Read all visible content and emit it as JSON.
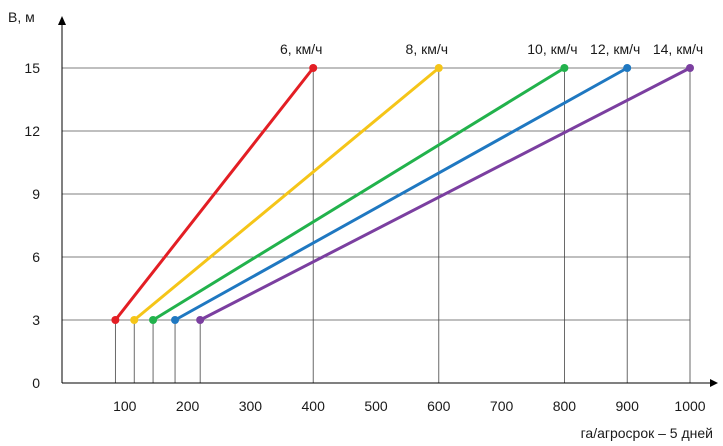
{
  "chart_data": {
    "type": "line",
    "ylabel": "B, м",
    "xlabel": "га/агросрок – 5 дней",
    "xlim": [
      0,
      1000
    ],
    "ylim": [
      0,
      15
    ],
    "xticks": [
      100,
      200,
      300,
      400,
      500,
      600,
      700,
      800,
      900,
      1000
    ],
    "yticks": [
      0,
      3,
      6,
      9,
      12,
      15
    ],
    "grid": "horizontal",
    "series": [
      {
        "name": "6, км/ч",
        "color": "#e31e24",
        "points": [
          [
            85,
            3
          ],
          [
            400,
            15
          ]
        ]
      },
      {
        "name": "8, км/ч",
        "color": "#f5c518",
        "points": [
          [
            115,
            3
          ],
          [
            600,
            15
          ]
        ]
      },
      {
        "name": "10, км/ч",
        "color": "#22b24c",
        "points": [
          [
            145,
            3
          ],
          [
            800,
            15
          ]
        ]
      },
      {
        "name": "12, км/ч",
        "color": "#1f78c1",
        "points": [
          [
            180,
            3
          ],
          [
            900,
            15
          ]
        ]
      },
      {
        "name": "14, км/ч",
        "color": "#7b3fa0",
        "points": [
          [
            220,
            3
          ],
          [
            1000,
            15
          ]
        ]
      }
    ]
  }
}
